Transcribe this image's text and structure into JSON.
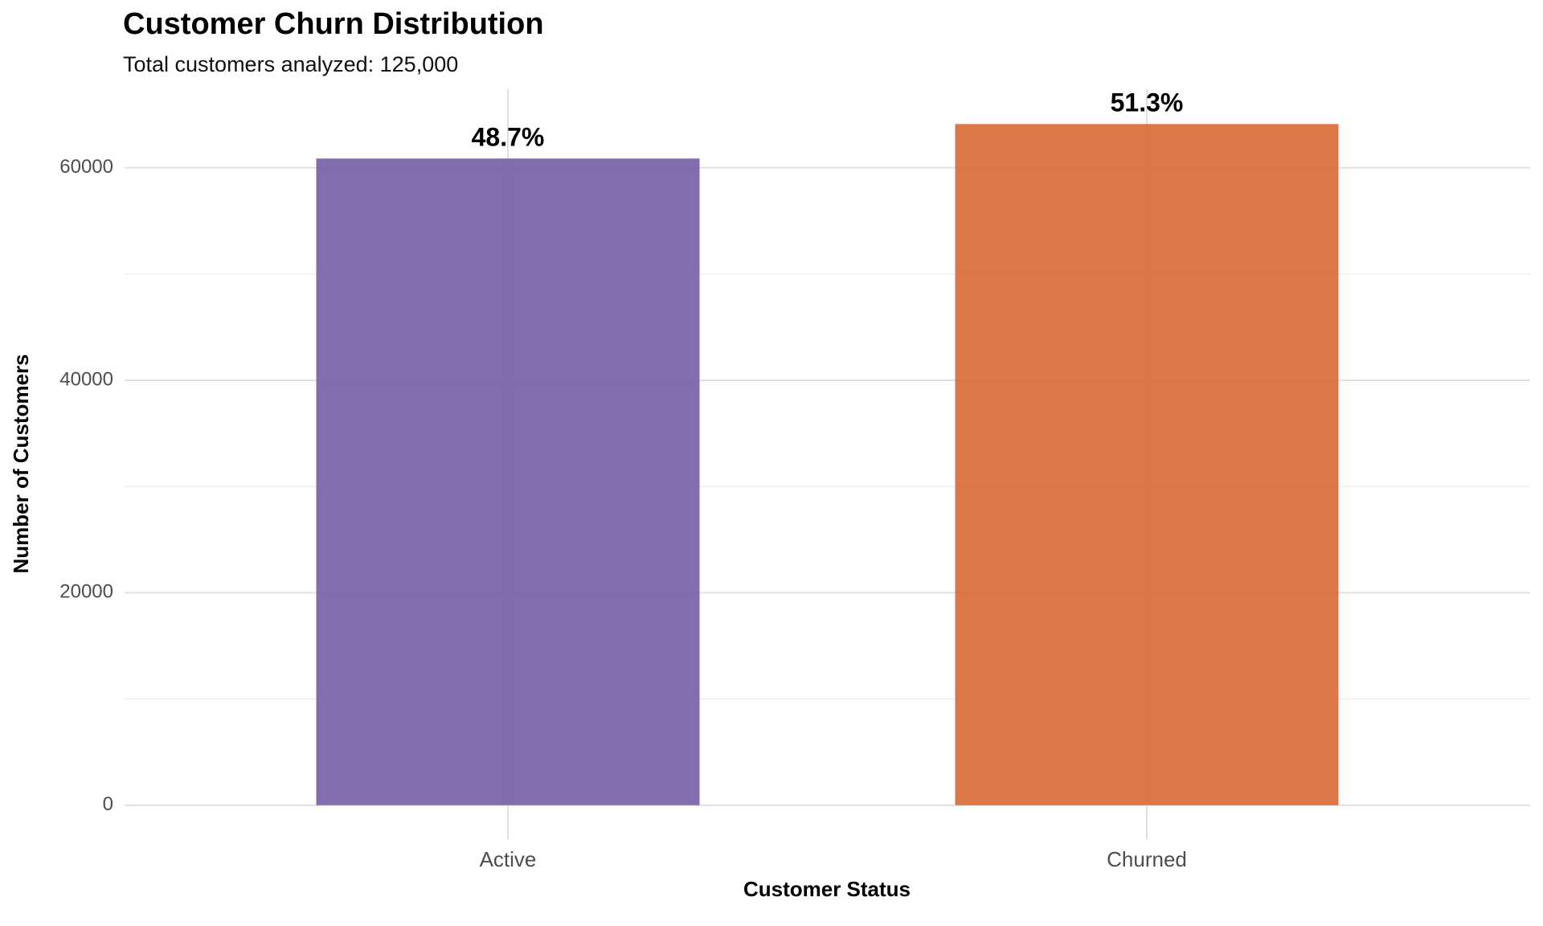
{
  "chart_data": {
    "type": "bar",
    "title": "Customer Churn Distribution",
    "subtitle": "Total customers analyzed: 125,000",
    "x_label": "Customer Status",
    "y_label": "Number of Customers",
    "categories": [
      "Active",
      "Churned"
    ],
    "values": [
      60875,
      64125
    ],
    "bar_labels": [
      "48.7%",
      "51.3%"
    ],
    "colors": [
      "#7762a8",
      "#d96b38"
    ],
    "ylim": [
      -3200,
      67400
    ],
    "yticks": [
      0,
      20000,
      40000,
      60000
    ],
    "minor_yticks": [
      10000,
      30000,
      50000
    ],
    "grid": true
  }
}
